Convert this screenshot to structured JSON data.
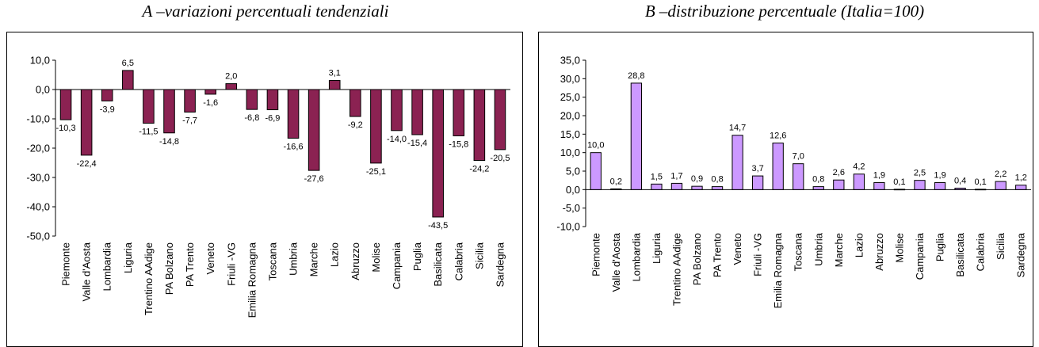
{
  "chart_data": [
    {
      "type": "bar",
      "title": "A –variazioni percentuali tendenziali",
      "categories": [
        "Piemonte",
        "Valle d'Aosta",
        "Lombardia",
        "Liguria",
        "Trentino AAdige",
        "PA Bolzano",
        "PA Trento",
        "Veneto",
        "Friuli -VG",
        "Emilia Romagna",
        "Toscana",
        "Umbria",
        "Marche",
        "Lazio",
        "Abruzzo",
        "Molise",
        "Campania",
        "Puglia",
        "Basilicata",
        "Calabria",
        "Sicilia",
        "Sardegna"
      ],
      "values": [
        -10.3,
        -22.4,
        -3.9,
        6.5,
        -11.5,
        -14.8,
        -7.7,
        -1.6,
        2.0,
        -6.8,
        -6.9,
        -16.6,
        -27.6,
        3.1,
        -9.2,
        -25.1,
        -14.0,
        -15.4,
        -43.5,
        -15.8,
        -24.2,
        -20.5
      ],
      "labels": [
        "-10,3",
        "-22,4",
        "-3,9",
        "6,5",
        "-11,5",
        "-14,8",
        "-7,7",
        "-1,6",
        "2,0",
        "-6,8",
        "-6,9",
        "-16,6",
        "-27,6",
        "3,1",
        "-9,2",
        "-25,1",
        "-14,0",
        "-15,4",
        "-43,5",
        "-15,8",
        "-24,2",
        "-20,5"
      ],
      "ylim": [
        -50,
        10
      ],
      "yticks": [
        "10,0",
        "0,0",
        "-10,0",
        "-20,0",
        "-30,0",
        "-40,0",
        "-50,0"
      ],
      "grid": false,
      "bar_color": "#8b2252"
    },
    {
      "type": "bar",
      "title": "B –distribuzione percentuale (Italia=100)",
      "categories": [
        "Piemonte",
        "Valle d'Aosta",
        "Lombardia",
        "Liguria",
        "Trentino AAdige",
        "PA Bolzano",
        "PA Trento",
        "Veneto",
        "Friuli -VG",
        "Emilia Romagna",
        "Toscana",
        "Umbria",
        "Marche",
        "Lazio",
        "Abruzzo",
        "Molise",
        "Campania",
        "Puglia",
        "Basilicata",
        "Calabria",
        "Sicilia",
        "Sardegna"
      ],
      "values": [
        10.0,
        0.2,
        28.8,
        1.5,
        1.7,
        0.9,
        0.8,
        14.7,
        3.7,
        12.6,
        7.0,
        0.8,
        2.6,
        4.2,
        1.9,
        0.1,
        2.5,
        1.9,
        0.4,
        0.1,
        2.2,
        1.2
      ],
      "labels": [
        "10,0",
        "0,2",
        "28,8",
        "1,5",
        "1,7",
        "0,9",
        "0,8",
        "14,7",
        "3,7",
        "12,6",
        "7,0",
        "0,8",
        "2,6",
        "4,2",
        "1,9",
        "0,1",
        "2,5",
        "1,9",
        "0,4",
        "0,1",
        "2,2",
        "1,2"
      ],
      "ylim": [
        -10,
        35
      ],
      "yticks": [
        "35,0",
        "30,0",
        "25,0",
        "20,0",
        "15,0",
        "10,0",
        "5,0",
        "0,0",
        "-5,0",
        "-10,0"
      ],
      "grid": false,
      "bar_color": "#cc99ff"
    }
  ]
}
